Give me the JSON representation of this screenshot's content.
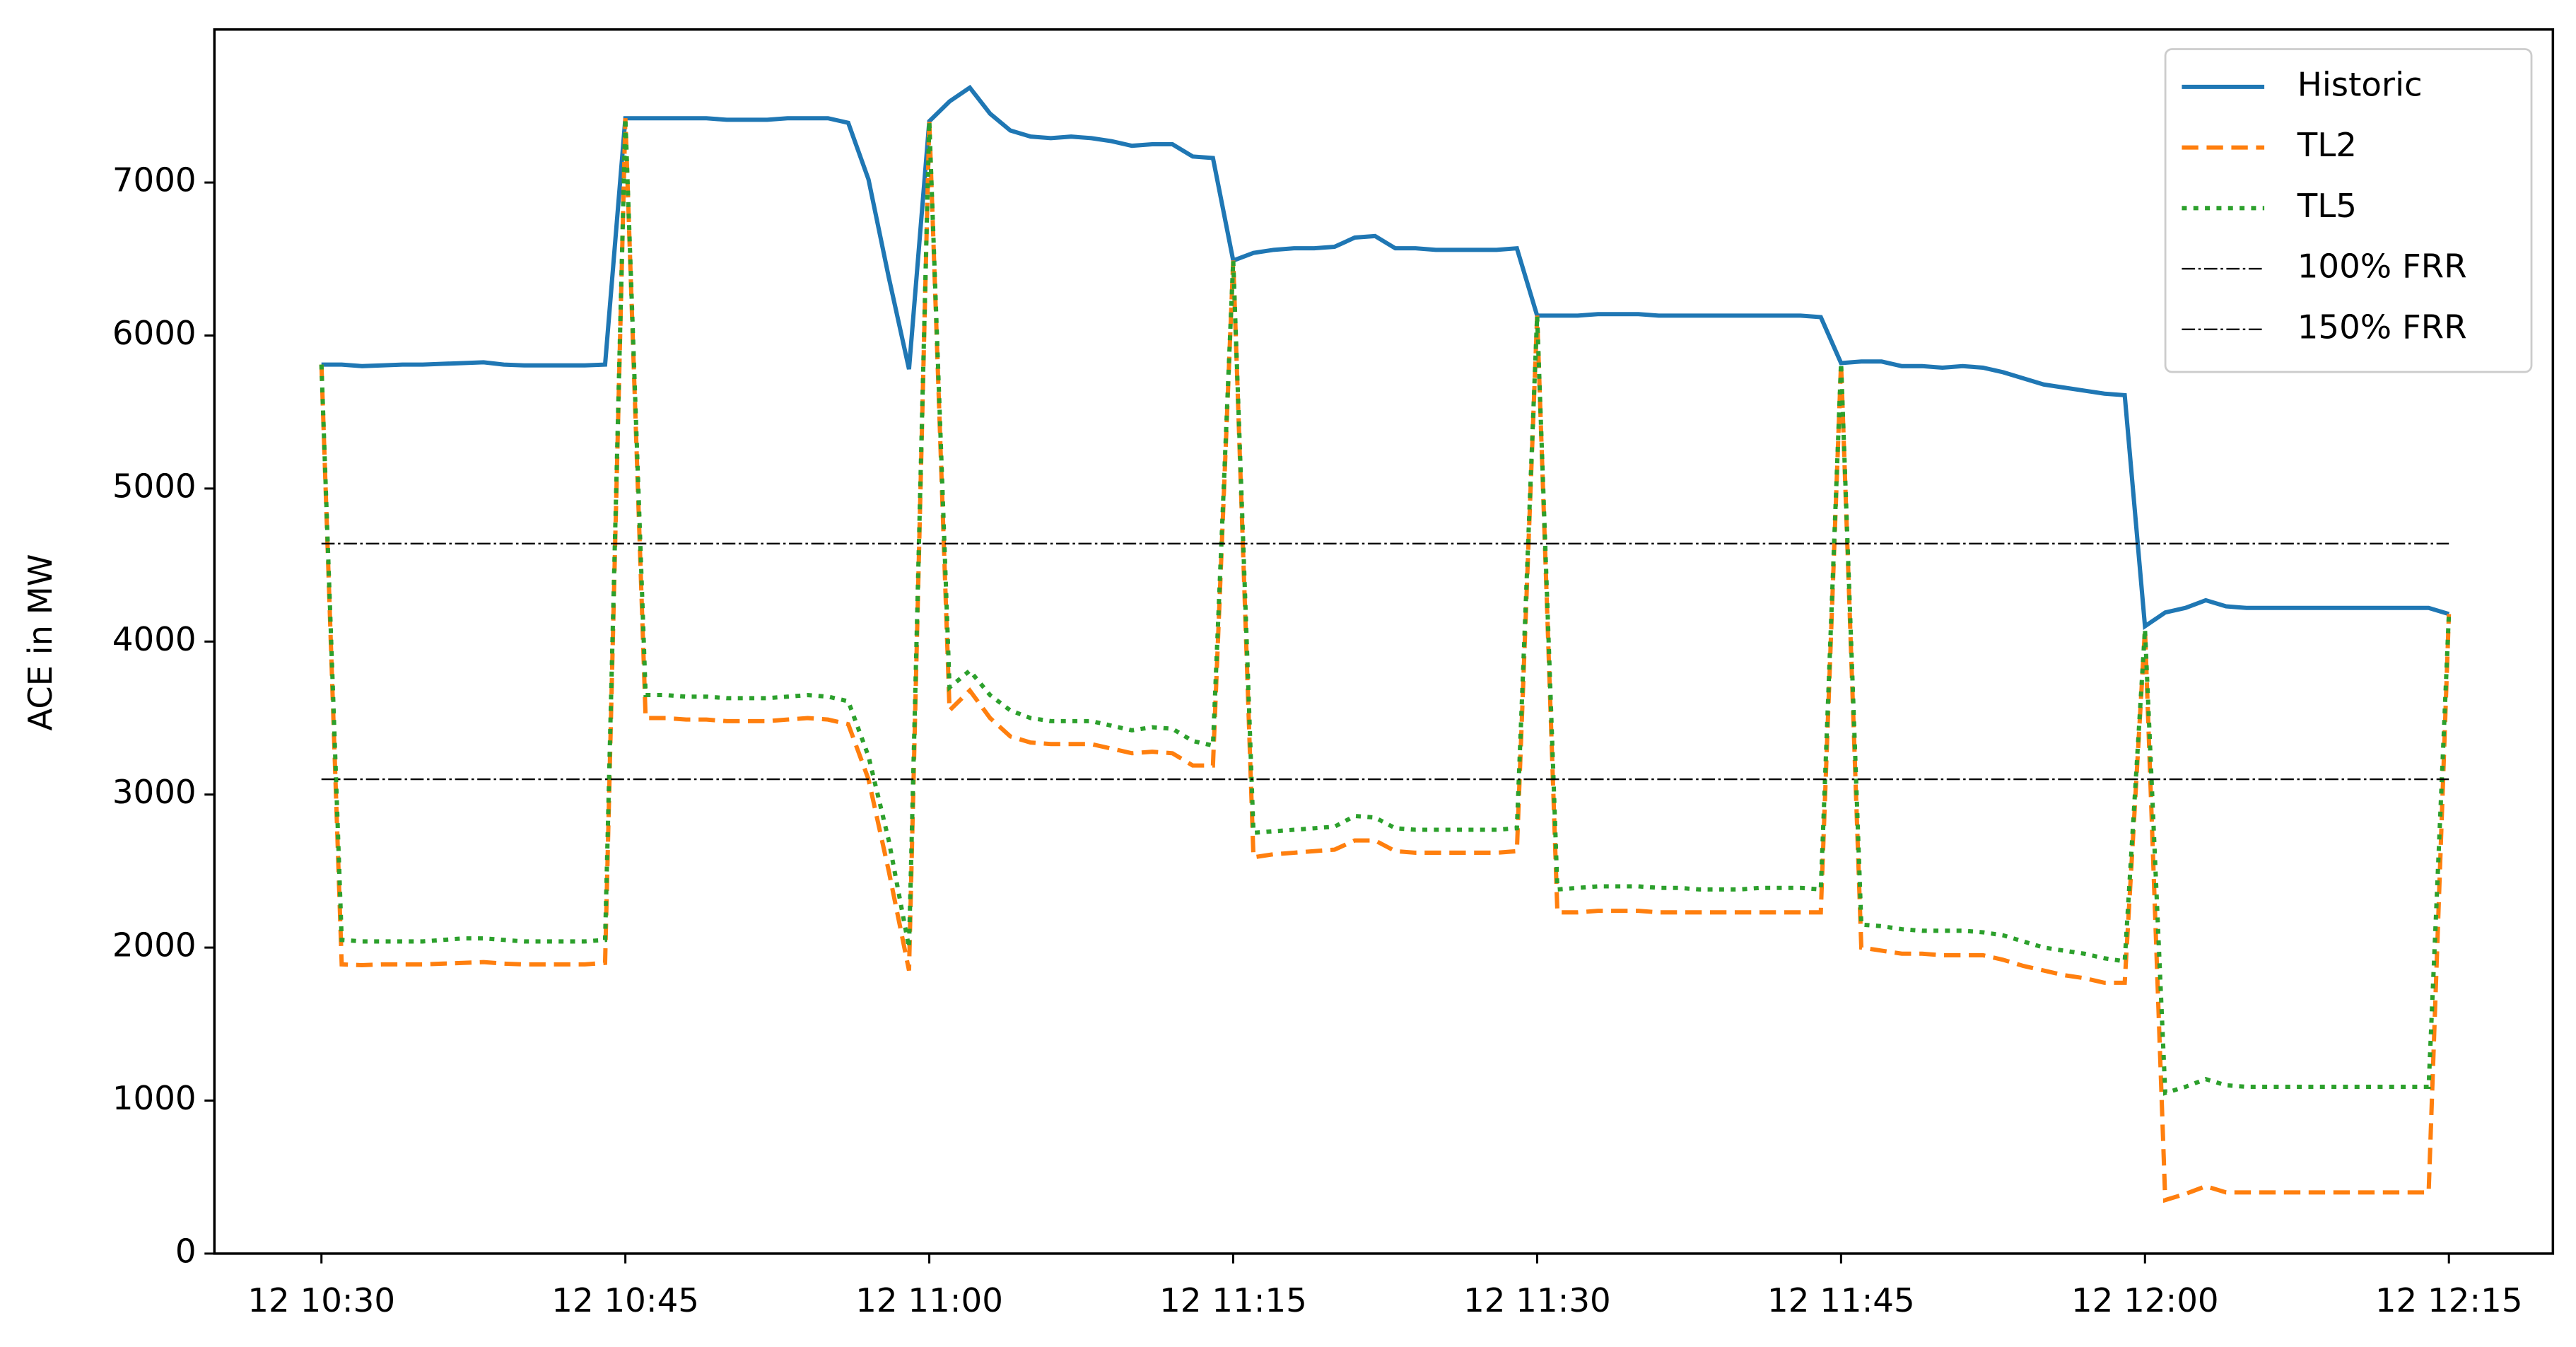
{
  "chart_data": {
    "type": "line",
    "y_label": "ACE in MW",
    "x": [
      "12 10:30",
      "12 10:31",
      "12 10:32",
      "12 10:33",
      "12 10:34",
      "12 10:35",
      "12 10:36",
      "12 10:37",
      "12 10:38",
      "12 10:39",
      "12 10:40",
      "12 10:41",
      "12 10:42",
      "12 10:43",
      "12 10:44",
      "12 10:45",
      "12 10:46",
      "12 10:47",
      "12 10:48",
      "12 10:49",
      "12 10:50",
      "12 10:51",
      "12 10:52",
      "12 10:53",
      "12 10:54",
      "12 10:55",
      "12 10:56",
      "12 10:57",
      "12 10:58",
      "12 10:59",
      "12 11:00",
      "12 11:01",
      "12 11:02",
      "12 11:03",
      "12 11:04",
      "12 11:05",
      "12 11:06",
      "12 11:07",
      "12 11:08",
      "12 11:09",
      "12 11:10",
      "12 11:11",
      "12 11:12",
      "12 11:13",
      "12 11:14",
      "12 11:15",
      "12 11:16",
      "12 11:17",
      "12 11:18",
      "12 11:19",
      "12 11:20",
      "12 11:21",
      "12 11:22",
      "12 11:23",
      "12 11:24",
      "12 11:25",
      "12 11:26",
      "12 11:27",
      "12 11:28",
      "12 11:29",
      "12 11:30",
      "12 11:31",
      "12 11:32",
      "12 11:33",
      "12 11:34",
      "12 11:35",
      "12 11:36",
      "12 11:37",
      "12 11:38",
      "12 11:39",
      "12 11:40",
      "12 11:41",
      "12 11:42",
      "12 11:43",
      "12 11:44",
      "12 11:45",
      "12 11:46",
      "12 11:47",
      "12 11:48",
      "12 11:49",
      "12 11:50",
      "12 11:51",
      "12 11:52",
      "12 11:53",
      "12 11:54",
      "12 11:55",
      "12 11:56",
      "12 11:57",
      "12 11:58",
      "12 11:59",
      "12 12:00",
      "12 12:01",
      "12 12:02",
      "12 12:03",
      "12 12:04",
      "12 12:05",
      "12 12:06",
      "12 12:07",
      "12 12:08",
      "12 12:09",
      "12 12:10",
      "12 12:11",
      "12 12:12",
      "12 12:13",
      "12 12:14",
      "12 12:15"
    ],
    "series": [
      {
        "name": "Historic",
        "color": "#1f77b4",
        "dash": "solid",
        "values": [
          5810,
          5810,
          5800,
          5805,
          5810,
          5810,
          5815,
          5820,
          5825,
          5810,
          5805,
          5805,
          5805,
          5805,
          5810,
          7420,
          7420,
          7420,
          7420,
          7420,
          7410,
          7410,
          7410,
          7420,
          7420,
          7420,
          7390,
          7020,
          6380,
          5780,
          7400,
          7530,
          7620,
          7450,
          7340,
          7300,
          7290,
          7300,
          7290,
          7270,
          7240,
          7250,
          7250,
          7170,
          7160,
          6490,
          6540,
          6560,
          6570,
          6570,
          6580,
          6640,
          6650,
          6570,
          6570,
          6560,
          6560,
          6560,
          6560,
          6570,
          6130,
          6130,
          6130,
          6140,
          6140,
          6140,
          6130,
          6130,
          6130,
          6130,
          6130,
          6130,
          6130,
          6130,
          6120,
          5820,
          5830,
          5830,
          5800,
          5800,
          5790,
          5800,
          5790,
          5760,
          5720,
          5680,
          5660,
          5640,
          5620,
          5610,
          4100,
          4190,
          4220,
          4270,
          4230,
          4220,
          4220,
          4220,
          4220,
          4220,
          4220,
          4220,
          4220,
          4220,
          4220,
          4180
        ]
      },
      {
        "name": "TL2",
        "color": "#ff7f0e",
        "dash": "dashed",
        "values": [
          5810,
          1890,
          1885,
          1890,
          1890,
          1890,
          1895,
          1900,
          1905,
          1895,
          1890,
          1890,
          1890,
          1890,
          1900,
          7420,
          3500,
          3500,
          3490,
          3490,
          3480,
          3480,
          3480,
          3490,
          3500,
          3490,
          3460,
          3100,
          2500,
          1850,
          7400,
          3550,
          3680,
          3500,
          3380,
          3340,
          3330,
          3330,
          3330,
          3300,
          3270,
          3280,
          3270,
          3190,
          3190,
          6490,
          2590,
          2610,
          2620,
          2630,
          2640,
          2700,
          2700,
          2630,
          2620,
          2620,
          2620,
          2620,
          2620,
          2630,
          6130,
          2230,
          2230,
          2240,
          2240,
          2240,
          2230,
          2230,
          2230,
          2230,
          2230,
          2230,
          2230,
          2230,
          2230,
          5820,
          2000,
          1980,
          1960,
          1960,
          1950,
          1950,
          1950,
          1920,
          1880,
          1850,
          1820,
          1800,
          1770,
          1770,
          4080,
          350,
          390,
          440,
          400,
          400,
          400,
          400,
          400,
          400,
          400,
          400,
          400,
          400,
          400,
          4180
        ]
      },
      {
        "name": "TL5",
        "color": "#2ca02c",
        "dash": "dotted",
        "values": [
          5810,
          2050,
          2040,
          2040,
          2040,
          2040,
          2050,
          2060,
          2060,
          2050,
          2040,
          2040,
          2040,
          2040,
          2050,
          7420,
          3650,
          3650,
          3640,
          3640,
          3630,
          3630,
          3630,
          3640,
          3650,
          3640,
          3610,
          3250,
          2700,
          2000,
          7400,
          3700,
          3810,
          3650,
          3550,
          3500,
          3480,
          3480,
          3480,
          3450,
          3420,
          3440,
          3430,
          3350,
          3320,
          6490,
          2750,
          2760,
          2770,
          2780,
          2790,
          2860,
          2850,
          2780,
          2770,
          2770,
          2770,
          2770,
          2770,
          2780,
          6130,
          2380,
          2390,
          2400,
          2400,
          2400,
          2390,
          2390,
          2380,
          2380,
          2380,
          2390,
          2390,
          2390,
          2380,
          5820,
          2150,
          2140,
          2120,
          2110,
          2110,
          2110,
          2100,
          2080,
          2040,
          2000,
          1980,
          1960,
          1930,
          1910,
          4080,
          1050,
          1090,
          1140,
          1100,
          1090,
          1090,
          1090,
          1090,
          1090,
          1090,
          1090,
          1090,
          1090,
          1090,
          4180
        ]
      },
      {
        "name": "100% FRR",
        "color": "#000000",
        "dash": "dashdot",
        "x": [
          "12 10:30",
          "12 12:15"
        ],
        "values": [
          4640,
          4640
        ]
      },
      {
        "name": "150% FRR",
        "color": "#000000",
        "dash": "dashdot",
        "x": [
          "12 10:30",
          "12 12:15"
        ],
        "values": [
          3100,
          3100
        ]
      }
    ],
    "xlim": [
      "12 10:24:43",
      "12 12:20:08"
    ],
    "xticks": [
      "12 10:30",
      "12 10:45",
      "12 11:00",
      "12 11:15",
      "12 11:30",
      "12 11:45",
      "12 12:00",
      "12 12:15"
    ],
    "ylim": [
      0,
      8000
    ],
    "yticks": [
      0,
      1000,
      2000,
      3000,
      4000,
      5000,
      6000,
      7000
    ],
    "legend": "upper right"
  }
}
